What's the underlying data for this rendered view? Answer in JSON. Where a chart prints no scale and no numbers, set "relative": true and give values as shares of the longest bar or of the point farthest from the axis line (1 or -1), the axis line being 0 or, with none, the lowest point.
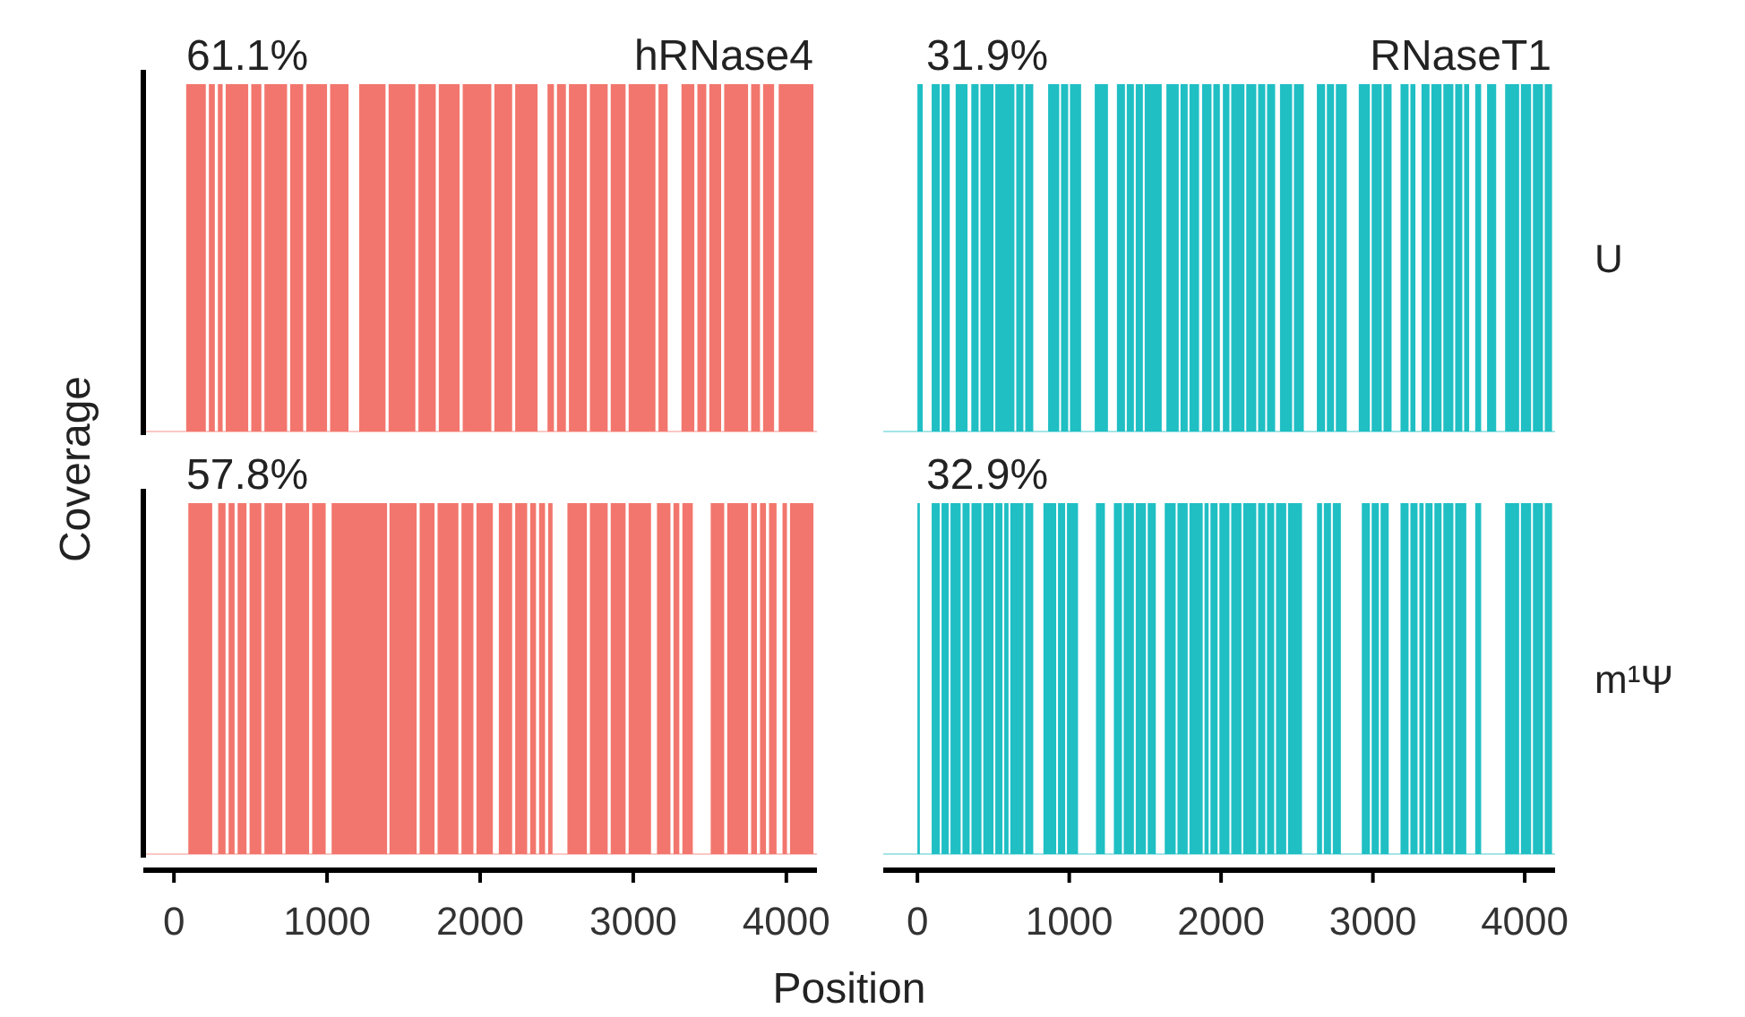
{
  "chart_data": [
    {
      "type": "area",
      "relative": true,
      "title": "hRNase4",
      "ylabel": "Coverage",
      "annotations": [
        "61.1%"
      ],
      "xlim": [
        -200,
        4200
      ],
      "tick_labels": false,
      "color": "#f2766d",
      "x": [
        80,
        208,
        228,
        267,
        287,
        318,
        338,
        485,
        505,
        571,
        591,
        739,
        759,
        844,
        864,
        1000,
        1020,
        1140,
        1210,
        1382,
        1402,
        1577,
        1597,
        1710,
        1730,
        1866,
        1886,
        2073,
        2093,
        2209,
        2229,
        2375,
        2440,
        2482,
        2502,
        2560,
        2580,
        2697,
        2717,
        2833,
        2853,
        2950,
        2970,
        3145,
        3165,
        3225,
        3315,
        3399,
        3419,
        3477,
        3497,
        3574,
        3594,
        3750,
        3770,
        3828,
        3848,
        3920,
        3950,
        4177
      ],
      "values": [
        1,
        0,
        1,
        0,
        1,
        0,
        1,
        0,
        1,
        0,
        1,
        0,
        1,
        0,
        1,
        0,
        1,
        0,
        1,
        0,
        1,
        0,
        1,
        0,
        1,
        0,
        1,
        0,
        1,
        0,
        1,
        0,
        1,
        0,
        1,
        0,
        1,
        0,
        1,
        0,
        1,
        0,
        1,
        0,
        1,
        0,
        1,
        0,
        1,
        0,
        1,
        0,
        1,
        0,
        1,
        0,
        1,
        0,
        1,
        0
      ]
    },
    {
      "type": "area",
      "relative": true,
      "title": "RNaseT1",
      "y2label": "U",
      "annotations": [
        "31.9%"
      ],
      "xlim": [
        -225,
        4200
      ],
      "tick_labels": false,
      "color": "#1fbfc4",
      "x": [
        0,
        35,
        94,
        147,
        159,
        213,
        252,
        330,
        355,
        403,
        415,
        501,
        513,
        639,
        651,
        698,
        710,
        763,
        861,
        934,
        946,
        993,
        1005,
        1078,
        1168,
        1255,
        1314,
        1367,
        1379,
        1426,
        1438,
        1485,
        1497,
        1609,
        1640,
        1721,
        1733,
        1780,
        1792,
        1855,
        1875,
        1937,
        1949,
        1992,
        2012,
        2055,
        2067,
        2154,
        2166,
        2232,
        2244,
        2291,
        2303,
        2356,
        2388,
        2468,
        2480,
        2545,
        2631,
        2685,
        2697,
        2744,
        2756,
        2828,
        2907,
        2980,
        2992,
        3058,
        3070,
        3123,
        3182,
        3235,
        3247,
        3280,
        3320,
        3373,
        3385,
        3452,
        3464,
        3530,
        3542,
        3589,
        3601,
        3634,
        3674,
        3713,
        3752,
        3812,
        3871,
        3963,
        3975,
        4042,
        4054,
        4120,
        4132,
        4180
      ],
      "values": [
        1,
        0,
        1,
        0,
        1,
        0,
        1,
        0,
        1,
        0,
        1,
        0,
        1,
        0,
        1,
        0,
        1,
        0,
        1,
        0,
        1,
        0,
        1,
        0,
        1,
        0,
        1,
        0,
        1,
        0,
        1,
        0,
        1,
        0,
        1,
        0,
        1,
        0,
        1,
        0,
        1,
        0,
        1,
        0,
        1,
        0,
        1,
        0,
        1,
        0,
        1,
        0,
        1,
        0,
        1,
        0,
        1,
        0,
        1,
        0,
        1,
        0,
        1,
        0,
        1,
        0,
        1,
        0,
        1,
        0,
        1,
        0,
        1,
        0,
        1,
        0,
        1,
        0,
        1,
        0,
        1,
        0,
        1,
        0,
        1,
        0,
        1,
        0,
        1,
        0,
        1,
        0,
        1,
        0,
        1,
        0
      ]
    },
    {
      "type": "area",
      "relative": true,
      "xlabel": "Position",
      "annotations": [
        "57.8%"
      ],
      "xlim": [
        -200,
        4200
      ],
      "xticks": [
        0,
        1000,
        2000,
        3000,
        4000
      ],
      "tick_labels": "x",
      "color": "#f2766d",
      "x": [
        94,
        250,
        289,
        337,
        357,
        396,
        416,
        474,
        494,
        571,
        591,
        708,
        728,
        883,
        903,
        991,
        1030,
        1392,
        1408,
        1585,
        1605,
        1702,
        1722,
        1858,
        1878,
        1956,
        1976,
        2083,
        2122,
        2209,
        2229,
        2307,
        2327,
        2365,
        2385,
        2424,
        2444,
        2473,
        2570,
        2697,
        2717,
        2833,
        2853,
        2950,
        2970,
        3116,
        3155,
        3243,
        3263,
        3301,
        3321,
        3389,
        3506,
        3594,
        3614,
        3750,
        3770,
        3808,
        3828,
        3867,
        3887,
        3936,
        3975,
        4004,
        4024,
        4177
      ],
      "values": [
        1,
        0,
        1,
        0,
        1,
        0,
        1,
        0,
        1,
        0,
        1,
        0,
        1,
        0,
        1,
        0,
        1,
        0,
        1,
        0,
        1,
        0,
        1,
        0,
        1,
        0,
        1,
        0,
        1,
        0,
        1,
        0,
        1,
        0,
        1,
        0,
        1,
        0,
        1,
        0,
        1,
        0,
        1,
        0,
        1,
        0,
        1,
        0,
        1,
        0,
        1,
        0,
        1,
        0,
        1,
        0,
        1,
        0,
        1,
        0,
        1,
        0,
        1,
        0,
        1,
        0
      ]
    },
    {
      "type": "area",
      "relative": true,
      "y2label": "m¹Ψ",
      "annotations": [
        "32.9%"
      ],
      "xlim": [
        -225,
        4200
      ],
      "xticks": [
        0,
        1000,
        2000,
        3000,
        4000
      ],
      "tick_labels": "x",
      "color": "#1fbfc4",
      "x": [
        0,
        16,
        94,
        147,
        159,
        206,
        218,
        285,
        297,
        344,
        356,
        422,
        434,
        501,
        513,
        560,
        572,
        600,
        612,
        698,
        710,
        763,
        830,
        914,
        926,
        973,
        985,
        1058,
        1176,
        1235,
        1294,
        1347,
        1359,
        1426,
        1438,
        1505,
        1517,
        1570,
        1629,
        1701,
        1713,
        1780,
        1792,
        1879,
        1891,
        1918,
        1930,
        1977,
        1989,
        2055,
        2067,
        2134,
        2146,
        2232,
        2244,
        2291,
        2303,
        2350,
        2362,
        2429,
        2441,
        2533,
        2632,
        2665,
        2677,
        2724,
        2736,
        2789,
        2927,
        2980,
        2992,
        3039,
        3051,
        3104,
        3182,
        3235,
        3247,
        3294,
        3306,
        3334,
        3346,
        3393,
        3405,
        3452,
        3464,
        3530,
        3542,
        3615,
        3674,
        3713,
        3871,
        3963,
        3975,
        4042,
        4054,
        4120,
        4132,
        4180
      ],
      "values": [
        1,
        0,
        1,
        0,
        1,
        0,
        1,
        0,
        1,
        0,
        1,
        0,
        1,
        0,
        1,
        0,
        1,
        0,
        1,
        0,
        1,
        0,
        1,
        0,
        1,
        0,
        1,
        0,
        1,
        0,
        1,
        0,
        1,
        0,
        1,
        0,
        1,
        0,
        1,
        0,
        1,
        0,
        1,
        0,
        1,
        0,
        1,
        0,
        1,
        0,
        1,
        0,
        1,
        0,
        1,
        0,
        1,
        0,
        1,
        0,
        1,
        0,
        1,
        0,
        1,
        0,
        1,
        0,
        1,
        0,
        1,
        0,
        1,
        0,
        1,
        0,
        1,
        0,
        1,
        0,
        1,
        0,
        1,
        0,
        1,
        0,
        1,
        0,
        1,
        0,
        1,
        0,
        1,
        0,
        1,
        0,
        1,
        0
      ]
    }
  ]
}
